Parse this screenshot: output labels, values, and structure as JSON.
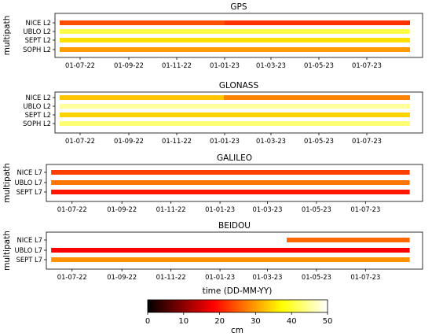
{
  "chart_data": {
    "type": "heatmap",
    "colormap": "hot",
    "colorbar": {
      "label": "cm",
      "xlabel": "time (DD-MM-YY)",
      "min": 0,
      "max": 50,
      "ticks": [
        "0",
        "10",
        "20",
        "30",
        "40",
        "50"
      ]
    },
    "x_ticks": [
      "01-07-22",
      "01-09-22",
      "01-11-22",
      "01-01-23",
      "01-03-23",
      "01-05-23",
      "01-07-23"
    ],
    "x_tick_dates": [
      "2022-07-01",
      "2022-09-01",
      "2022-11-01",
      "2023-01-01",
      "2023-03-01",
      "2023-05-01",
      "2023-07-01"
    ],
    "xlim": [
      "2022-05-30",
      "2023-09-10"
    ],
    "panels": [
      {
        "title": "GPS",
        "ylabel": "multipath",
        "series": [
          {
            "name": "NICE L2",
            "start": "2022-06-05",
            "end": "2023-08-25",
            "segments": [
              {
                "from": "2022-06-05",
                "to": "2023-01-01",
                "value": 24
              },
              {
                "from": "2023-01-01",
                "to": "2023-08-25",
                "value": 22
              }
            ]
          },
          {
            "name": "UBLO L2",
            "start": "2022-06-05",
            "end": "2023-08-25",
            "segments": [
              {
                "from": "2022-06-05",
                "to": "2023-08-25",
                "value": 41
              }
            ]
          },
          {
            "name": "SEPT L2",
            "start": "2022-06-05",
            "end": "2023-08-25",
            "segments": [
              {
                "from": "2022-06-05",
                "to": "2023-08-25",
                "value": 35
              }
            ]
          },
          {
            "name": "SOPH L2",
            "start": "2022-06-05",
            "end": "2023-08-25",
            "segments": [
              {
                "from": "2022-06-05",
                "to": "2023-08-25",
                "value": 30
              }
            ]
          }
        ]
      },
      {
        "title": "GLONASS",
        "ylabel": "",
        "series": [
          {
            "name": "NICE L2",
            "start": "2022-06-05",
            "end": "2023-08-25",
            "segments": [
              {
                "from": "2022-06-05",
                "to": "2022-12-31",
                "value": 33
              },
              {
                "from": "2022-12-31",
                "to": "2023-08-25",
                "value": 28
              }
            ]
          },
          {
            "name": "UBLO L2",
            "start": "2022-06-05",
            "end": "2023-08-25",
            "segments": [
              {
                "from": "2022-06-05",
                "to": "2023-08-25",
                "value": 45
              }
            ]
          },
          {
            "name": "SEPT L2",
            "start": "2022-06-05",
            "end": "2023-08-25",
            "segments": [
              {
                "from": "2022-06-05",
                "to": "2023-08-25",
                "value": 34
              }
            ]
          },
          {
            "name": "SOPH L2",
            "start": "2022-06-05",
            "end": "2023-08-25",
            "segments": [
              {
                "from": "2022-06-05",
                "to": "2023-08-25",
                "value": 43
              }
            ]
          }
        ]
      },
      {
        "title": "GALILEO",
        "ylabel": "multipath",
        "series": [
          {
            "name": "NICE L7",
            "start": "2022-06-05",
            "end": "2023-08-25",
            "segments": [
              {
                "from": "2022-06-05",
                "to": "2023-08-25",
                "value": 23
              }
            ]
          },
          {
            "name": "UBLO L7",
            "start": "2022-06-05",
            "end": "2023-08-25",
            "segments": [
              {
                "from": "2022-06-05",
                "to": "2023-08-25",
                "value": 27
              }
            ]
          },
          {
            "name": "SEPT L7",
            "start": "2022-06-05",
            "end": "2023-08-25",
            "segments": [
              {
                "from": "2022-06-05",
                "to": "2023-08-25",
                "value": 20
              }
            ]
          }
        ]
      },
      {
        "title": "BEIDOU",
        "ylabel": "multipath",
        "series": [
          {
            "name": "NICE L7",
            "start": "2023-03-25",
            "end": "2023-08-25",
            "segments": [
              {
                "from": "2023-03-25",
                "to": "2023-08-25",
                "value": 26
              }
            ]
          },
          {
            "name": "UBLO L7",
            "start": "2022-06-05",
            "end": "2023-08-25",
            "segments": [
              {
                "from": "2022-06-05",
                "to": "2023-08-25",
                "value": 18
              }
            ]
          },
          {
            "name": "SEPT L7",
            "start": "2022-06-05",
            "end": "2023-08-25",
            "segments": [
              {
                "from": "2022-06-05",
                "to": "2023-08-25",
                "value": 29
              }
            ]
          }
        ]
      }
    ]
  }
}
